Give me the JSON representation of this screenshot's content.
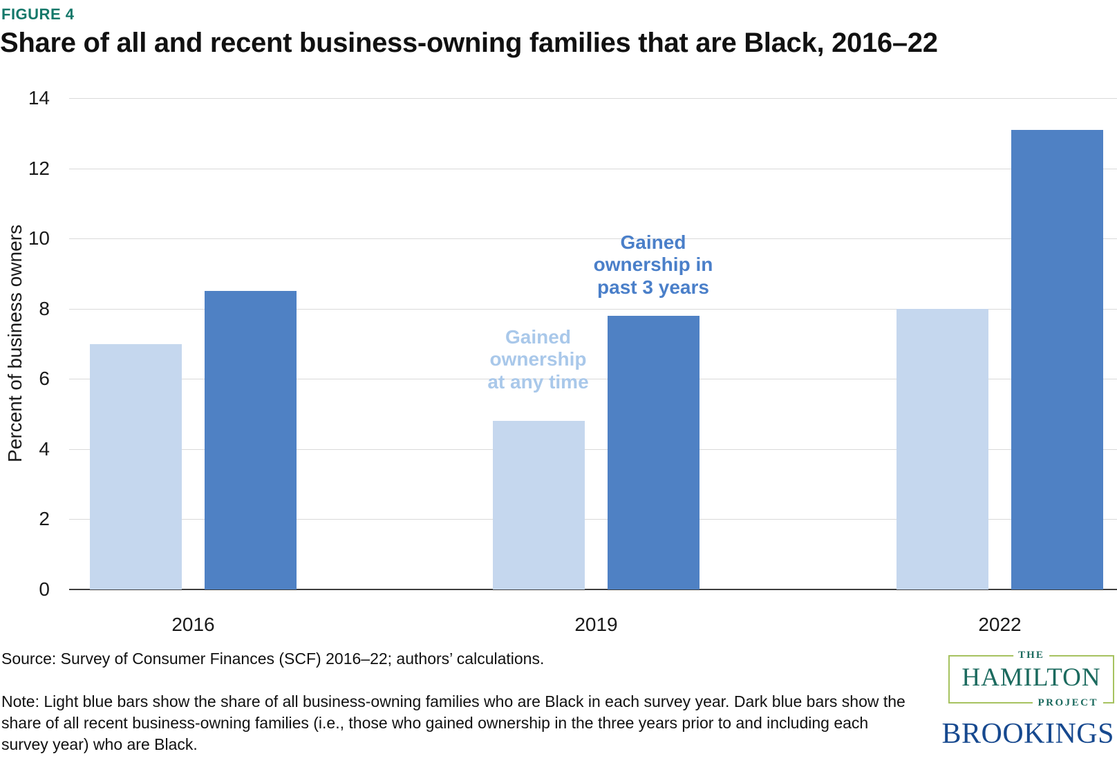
{
  "figure_label": "FIGURE 4",
  "title": "Share of all and recent business-owning families that are Black, 2016–22",
  "chart_data": {
    "type": "bar",
    "categories": [
      "2016",
      "2019",
      "2022"
    ],
    "series": [
      {
        "name": "Gained ownership at any time",
        "color": "#c5d7ee",
        "values": [
          7.0,
          4.8,
          8.0
        ]
      },
      {
        "name": "Gained ownership in past 3 years",
        "color": "#4f81c4",
        "values": [
          8.5,
          7.8,
          13.1
        ]
      }
    ],
    "title": "Share of all and recent business-owning families that are Black, 2016–22",
    "xlabel": "",
    "ylabel": "Percent of business owners",
    "ylim": [
      0,
      14
    ],
    "yticks": [
      0,
      2,
      4,
      6,
      8,
      10,
      12,
      14
    ],
    "grid": true,
    "legend_position": "inline-annotations",
    "annotations": [
      {
        "lines": [
          "Gained",
          "ownership in",
          "past 3 years"
        ],
        "color": "#4a7fc9",
        "refers_to": "Gained ownership in past 3 years"
      },
      {
        "lines": [
          "Gained",
          "ownership",
          "at any time"
        ],
        "color": "#a9c8ea",
        "refers_to": "Gained ownership at any time"
      }
    ]
  },
  "source": "Source: Survey of Consumer Finances (SCF) 2016–22; authors’ calculations.",
  "note": "Note: Light blue bars show the share of all business-owning families who are Black in each survey year. Dark blue bars show the share of all recent business-owning families (i.e., those who gained ownership in the three years prior to and including each survey year) who are Black.",
  "logos": {
    "hamilton": {
      "line1": "THE",
      "line2": "HAMILTON",
      "line3": "PROJECT"
    },
    "brookings": {
      "label": "BROOKINGS"
    }
  },
  "colors": {
    "figure_label": "#14786a",
    "title_text": "#111111",
    "gridline": "#d9d9d9",
    "axis_line": "#3d3d3d",
    "tick_text": "#1a1a1a"
  }
}
